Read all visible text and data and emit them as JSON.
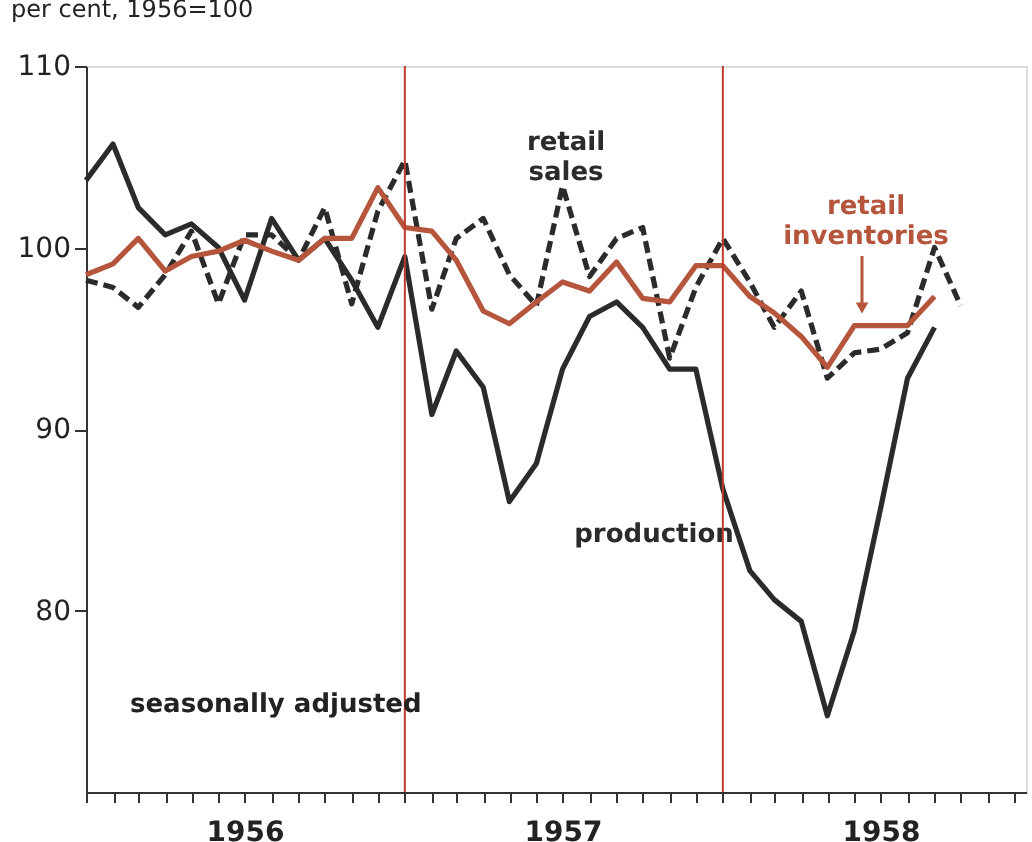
{
  "chart_data": {
    "type": "line",
    "ylabel": "per cent, 1956=100",
    "x": [
      "1956-01",
      "1956-02",
      "1956-03",
      "1956-04",
      "1956-05",
      "1956-06",
      "1956-07",
      "1956-08",
      "1956-09",
      "1956-10",
      "1956-11",
      "1956-12",
      "1957-01",
      "1957-02",
      "1957-03",
      "1957-04",
      "1957-05",
      "1957-06",
      "1957-07",
      "1957-08",
      "1957-09",
      "1957-10",
      "1957-11",
      "1957-12",
      "1958-01",
      "1958-02",
      "1958-03",
      "1958-04",
      "1958-05",
      "1958-06",
      "1958-07",
      "1958-08",
      "1958-09",
      "1958-10"
    ],
    "series": [
      {
        "name": "production",
        "color": "#2b2b2b",
        "line_style": "solid",
        "values": [
          103.7,
          105.7,
          102.2,
          100.7,
          101.3,
          100,
          97.1,
          101.6,
          99.3,
          100.5,
          98.2,
          95.6,
          99.5,
          90.8,
          94.3,
          92.3,
          86,
          88.1,
          93.3,
          96.2,
          97,
          95.6,
          93.3,
          93.3,
          86.7,
          82.2,
          80.6,
          79.4,
          74.2,
          78.9,
          85.6,
          92.8,
          95.6,
          null
        ]
      },
      {
        "name": "retail sales",
        "color": "#2b2b2b",
        "line_style": "dashed",
        "values": [
          98.2,
          97.8,
          96.7,
          98.5,
          100.9,
          96.9,
          100.7,
          100.7,
          99.3,
          102.2,
          96.9,
          102,
          104.8,
          96.6,
          100.5,
          101.6,
          98.5,
          96.8,
          103.4,
          98.4,
          100.5,
          101.1,
          93.9,
          97.8,
          100.5,
          98.1,
          95.6,
          97.6,
          92.8,
          94.2,
          94.4,
          95.3,
          100,
          96.8
        ]
      },
      {
        "name": "retail inventories",
        "color": "#b5553c",
        "line_style": "solid",
        "values": [
          98.5,
          99.1,
          100.5,
          98.7,
          99.5,
          99.8,
          100.4,
          99.8,
          99.3,
          100.5,
          100.5,
          103.3,
          101.1,
          100.9,
          99.3,
          96.5,
          95.8,
          97,
          98.1,
          97.6,
          99.2,
          97.2,
          97,
          99,
          99,
          97.3,
          96.4,
          95.1,
          93.4,
          95.7,
          95.7,
          95.7,
          97.3,
          null
        ]
      }
    ],
    "xlim": [
      "1956-01",
      "1958-12-15"
    ],
    "xticks": [
      {
        "value": "1956-01",
        "label": null
      },
      {
        "value": "1956-02",
        "label": null
      },
      {
        "value": "1956-03",
        "label": null
      },
      {
        "value": "1956-04",
        "label": null
      },
      {
        "value": "1956-05",
        "label": null
      },
      {
        "value": "1956-06",
        "label": null
      },
      {
        "value": "1956-07",
        "label": "1956"
      },
      {
        "value": "1956-08",
        "label": null
      },
      {
        "value": "1956-09",
        "label": null
      },
      {
        "value": "1956-10",
        "label": null
      },
      {
        "value": "1956-11",
        "label": null
      },
      {
        "value": "1956-12",
        "label": null
      },
      {
        "value": "1957-01",
        "label": null
      },
      {
        "value": "1957-02",
        "label": null
      },
      {
        "value": "1957-03",
        "label": null
      },
      {
        "value": "1957-04",
        "label": null
      },
      {
        "value": "1957-05",
        "label": null
      },
      {
        "value": "1957-06",
        "label": null
      },
      {
        "value": "1957-07",
        "label": "1957"
      },
      {
        "value": "1957-08",
        "label": null
      },
      {
        "value": "1957-09",
        "label": null
      },
      {
        "value": "1957-10",
        "label": null
      },
      {
        "value": "1957-11",
        "label": null
      },
      {
        "value": "1957-12",
        "label": null
      },
      {
        "value": "1958-01",
        "label": null
      },
      {
        "value": "1958-02",
        "label": null
      },
      {
        "value": "1958-03",
        "label": null
      },
      {
        "value": "1958-04",
        "label": null
      },
      {
        "value": "1958-05",
        "label": null
      },
      {
        "value": "1958-06",
        "label": null
      },
      {
        "value": "1958-07",
        "label": "1958"
      },
      {
        "value": "1958-08",
        "label": null
      },
      {
        "value": "1958-09",
        "label": null
      },
      {
        "value": "1958-10",
        "label": null
      },
      {
        "value": "1958-11",
        "label": null
      },
      {
        "value": "1958-12",
        "label": null
      }
    ],
    "ylim": [
      70,
      110
    ],
    "yticks": [
      80,
      90,
      100,
      110
    ],
    "ref_lines": [
      {
        "axis": "x",
        "value": "1957-01",
        "color": "#c0392b"
      },
      {
        "axis": "x",
        "value": "1958-01",
        "color": "#c0392b"
      }
    ],
    "annotations": [
      "seasonally adjusted"
    ],
    "grid": false,
    "legend": false,
    "marker": "none"
  }
}
